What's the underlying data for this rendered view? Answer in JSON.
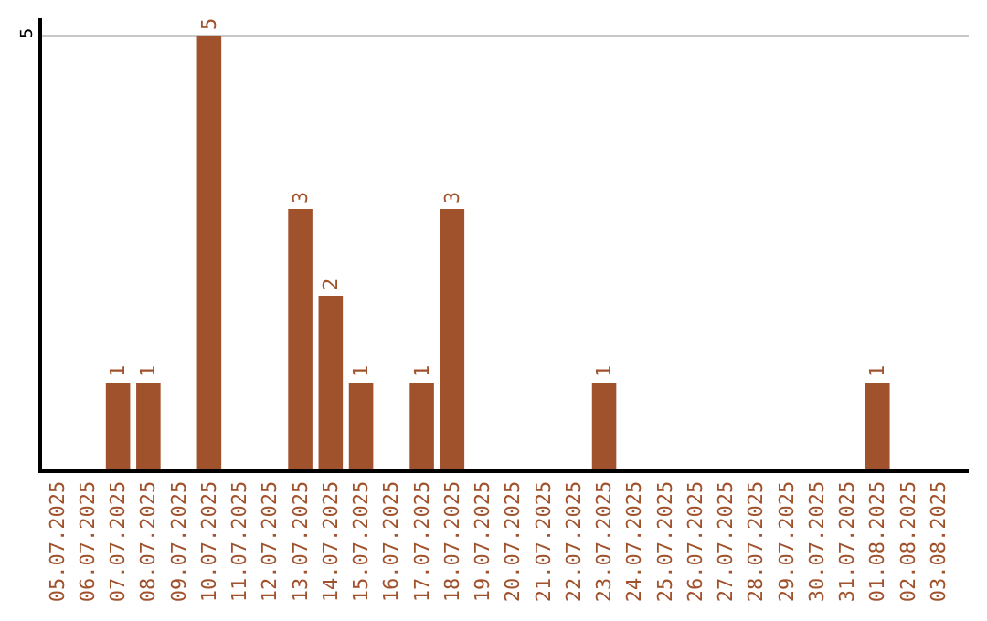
{
  "chart_data": {
    "type": "bar",
    "categories": [
      "05.07.2025",
      "06.07.2025",
      "07.07.2025",
      "08.07.2025",
      "09.07.2025",
      "10.07.2025",
      "11.07.2025",
      "12.07.2025",
      "13.07.2025",
      "14.07.2025",
      "15.07.2025",
      "16.07.2025",
      "17.07.2025",
      "18.07.2025",
      "19.07.2025",
      "20.07.2025",
      "21.07.2025",
      "22.07.2025",
      "23.07.2025",
      "24.07.2025",
      "25.07.2025",
      "26.07.2025",
      "27.07.2025",
      "28.07.2025",
      "29.07.2025",
      "30.07.2025",
      "31.07.2025",
      "01.08.2025",
      "02.08.2025",
      "03.08.2025"
    ],
    "values": [
      null,
      null,
      1,
      1,
      null,
      5,
      null,
      null,
      3,
      2,
      1,
      null,
      1,
      3,
      null,
      null,
      null,
      null,
      1,
      null,
      null,
      null,
      null,
      null,
      null,
      null,
      null,
      1,
      null,
      null
    ],
    "color": "#a0522d",
    "ylim": [
      0,
      5.2
    ],
    "yticks": [
      5
    ],
    "grid": "y",
    "data_labels": true
  }
}
